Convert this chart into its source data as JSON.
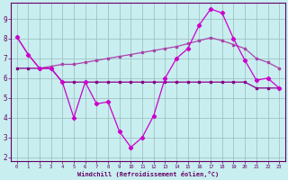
{
  "x": [
    0,
    1,
    2,
    3,
    4,
    5,
    6,
    7,
    8,
    9,
    10,
    11,
    12,
    13,
    14,
    15,
    16,
    17,
    18,
    19,
    20,
    21,
    22,
    23
  ],
  "line_spiky": [
    8.1,
    7.2,
    6.5,
    6.5,
    5.8,
    4.0,
    5.8,
    4.7,
    4.8,
    3.3,
    2.5,
    3.0,
    4.1,
    6.0,
    7.0,
    7.5,
    8.7,
    9.5,
    9.3,
    8.0,
    6.9,
    5.9,
    6.0,
    5.5
  ],
  "line_flat": [
    6.5,
    6.5,
    6.5,
    6.5,
    5.8,
    5.8,
    5.8,
    5.8,
    5.8,
    5.8,
    5.8,
    5.8,
    5.8,
    5.8,
    5.8,
    5.8,
    5.8,
    5.8,
    5.8,
    5.8,
    5.8,
    5.5,
    5.5,
    5.5
  ],
  "line_rise": [
    8.1,
    7.2,
    6.5,
    6.6,
    6.7,
    6.7,
    6.8,
    6.9,
    7.0,
    7.1,
    7.2,
    7.3,
    7.4,
    7.5,
    7.6,
    7.75,
    7.9,
    8.05,
    7.9,
    7.7,
    7.5,
    7.0,
    6.8,
    6.5
  ],
  "bg_color": "#c8eef0",
  "grid_color": "#99bbbb",
  "line_color_spiky": "#cc00cc",
  "line_color_flat": "#880088",
  "line_color_rise": "#aa44aa",
  "xlabel": "Windchill (Refroidissement éolien,°C)",
  "ylabel_ticks": [
    2,
    3,
    4,
    5,
    6,
    7,
    8,
    9
  ],
  "xtick_labels": [
    "0",
    "1",
    "2",
    "3",
    "4",
    "5",
    "6",
    "7",
    "8",
    "9",
    "10",
    "11",
    "12",
    "13",
    "14",
    "15",
    "16",
    "17",
    "18",
    "19",
    "20",
    "21",
    "22",
    "23"
  ],
  "xlim": [
    -0.5,
    23.5
  ],
  "ylim": [
    1.8,
    9.8
  ]
}
